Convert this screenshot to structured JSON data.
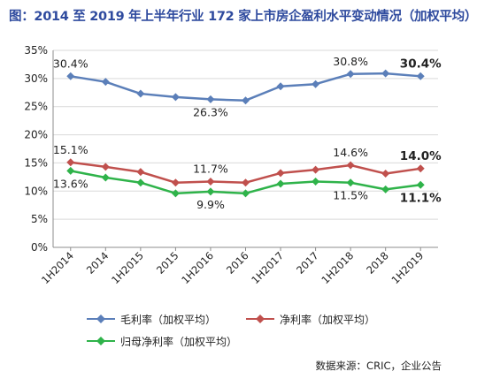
{
  "chart_data": {
    "type": "line",
    "title": "图：2014 至 2019 年上半年行业 172 家上市房企盈利水平变动情况（加权平均）",
    "categories": [
      "1H2014",
      "2014",
      "1H2015",
      "2015",
      "1H2016",
      "2016",
      "1H2017",
      "2017",
      "1H2018",
      "2018",
      "1H2019"
    ],
    "ylim": [
      0,
      35
    ],
    "yticks": [
      "0%",
      "5%",
      "10%",
      "15%",
      "20%",
      "25%",
      "30%",
      "35%"
    ],
    "grid": true,
    "legend_position": "bottom",
    "series": [
      {
        "name": "毛利率（加权平均）",
        "color": "#5b7fb9",
        "values": [
          30.4,
          29.4,
          27.3,
          26.7,
          26.3,
          26.1,
          28.6,
          29.0,
          30.8,
          30.9,
          30.4
        ],
        "labels": [
          {
            "index": 0,
            "text": "30.4%",
            "bold": false,
            "pos": "above"
          },
          {
            "index": 4,
            "text": "26.3%",
            "bold": false,
            "pos": "below"
          },
          {
            "index": 8,
            "text": "30.8%",
            "bold": false,
            "pos": "above"
          },
          {
            "index": 10,
            "text": "30.4%",
            "bold": true,
            "pos": "above"
          }
        ]
      },
      {
        "name": "净利率（加权平均）",
        "color": "#c0504d",
        "values": [
          15.1,
          14.3,
          13.4,
          11.5,
          11.7,
          11.5,
          13.2,
          13.8,
          14.6,
          13.1,
          14.0
        ],
        "labels": [
          {
            "index": 0,
            "text": "15.1%",
            "bold": false,
            "pos": "above"
          },
          {
            "index": 4,
            "text": "11.7%",
            "bold": false,
            "pos": "above"
          },
          {
            "index": 8,
            "text": "14.6%",
            "bold": false,
            "pos": "above"
          },
          {
            "index": 10,
            "text": "14.0%",
            "bold": true,
            "pos": "above"
          }
        ]
      },
      {
        "name": "归母净利率（加权平均）",
        "color": "#2fb34a",
        "values": [
          13.6,
          12.4,
          11.5,
          9.6,
          9.9,
          9.6,
          11.3,
          11.7,
          11.5,
          10.3,
          11.1
        ],
        "labels": [
          {
            "index": 0,
            "text": "13.6%",
            "bold": false,
            "pos": "below"
          },
          {
            "index": 4,
            "text": "9.9%",
            "bold": false,
            "pos": "below"
          },
          {
            "index": 8,
            "text": "11.5%",
            "bold": false,
            "pos": "below"
          },
          {
            "index": 10,
            "text": "11.1%",
            "bold": true,
            "pos": "below"
          }
        ]
      }
    ]
  },
  "source": "数据来源：CRIC，企业公告"
}
